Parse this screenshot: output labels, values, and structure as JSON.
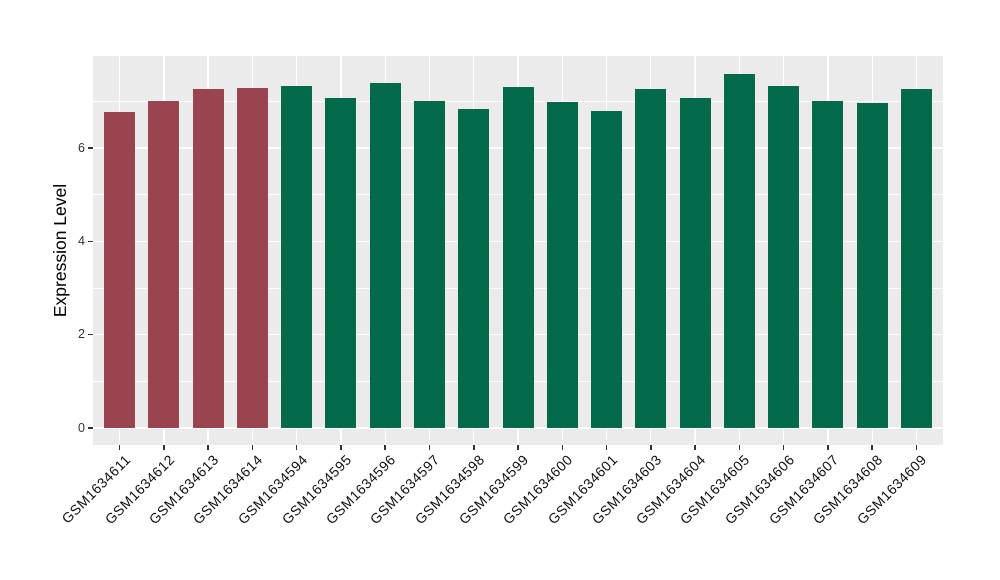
{
  "chart_data": {
    "type": "bar",
    "title": "",
    "xlabel": "",
    "ylabel": "Expression Level",
    "categories": [
      "GSM1634611",
      "GSM1634612",
      "GSM1634613",
      "GSM1634614",
      "GSM1634594",
      "GSM1634595",
      "GSM1634596",
      "GSM1634597",
      "GSM1634598",
      "GSM1634599",
      "GSM1634600",
      "GSM1634601",
      "GSM1634603",
      "GSM1634604",
      "GSM1634605",
      "GSM1634606",
      "GSM1634607",
      "GSM1634608",
      "GSM1634609"
    ],
    "values": [
      6.78,
      7.01,
      7.27,
      7.29,
      7.33,
      7.08,
      7.4,
      7.0,
      6.83,
      7.31,
      6.98,
      6.8,
      7.26,
      7.08,
      7.58,
      7.33,
      7.0,
      6.97,
      7.27
    ],
    "bar_colors": [
      "#9A4450",
      "#9A4450",
      "#9A4450",
      "#9A4450",
      "#006A49",
      "#006A49",
      "#006A49",
      "#006A49",
      "#006A49",
      "#006A49",
      "#006A49",
      "#006A49",
      "#006A49",
      "#006A49",
      "#006A49",
      "#006A49",
      "#006A49",
      "#006A49",
      "#006A49"
    ],
    "group_colors": {
      "highlighted_group": "#9A4450",
      "default_group": "#006A49"
    },
    "yticks": {
      "labels": [
        "0",
        "2",
        "4",
        "6"
      ],
      "values": [
        0,
        2,
        4,
        6
      ]
    },
    "yticks_minor": [
      1,
      3,
      5,
      7
    ],
    "ylim": [
      -0.36,
      7.98
    ],
    "legend": "none",
    "grid": true,
    "style": {
      "figure_bg": "#FFFFFF",
      "panel_bg": "#EBEBEB",
      "grid_color": "#FFFFFF",
      "tick_label_color": "#333333",
      "x_label_color": "#111111",
      "axis_title_color": "#000000"
    }
  }
}
